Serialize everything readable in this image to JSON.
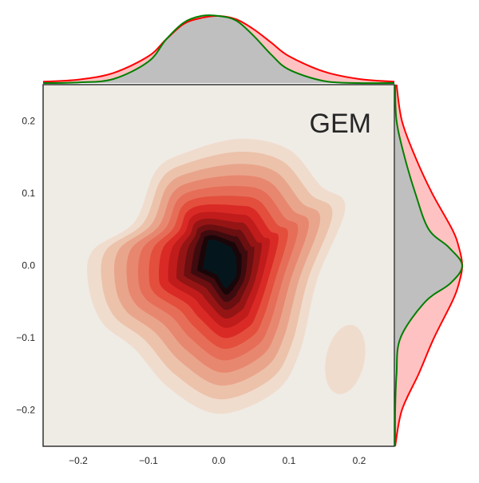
{
  "colors": {
    "background": "#ffffff",
    "joint_plot_face": "#efebe5",
    "marginal_fill_gray": "#bfbfbf",
    "marginal_fill_red": "#ffc2c2",
    "marginal_line_red": "#ff0000",
    "marginal_line_green": "#008000",
    "axis_spine": "#262626",
    "density_ramp": [
      "#f0dccd",
      "#ecc2ab",
      "#e9a58c",
      "#e8876f",
      "#e66e58",
      "#e34f3c",
      "#da2a26",
      "#c01c1b",
      "#951515",
      "#6b0f11",
      "#3f0b0e",
      "#1a0609",
      "#04161c"
    ]
  },
  "chart_data": {
    "type": "joint-kde",
    "corner_label": "GEM",
    "xlim": [
      -0.25,
      0.25
    ],
    "ylim": [
      -0.25,
      0.25
    ],
    "x_ticks": [
      {
        "value": -0.2,
        "label": "−0.2"
      },
      {
        "value": -0.1,
        "label": "−0.1"
      },
      {
        "value": 0.0,
        "label": "0.0"
      },
      {
        "value": 0.1,
        "label": "0.1"
      },
      {
        "value": 0.2,
        "label": "0.2"
      }
    ],
    "y_ticks": [
      {
        "value": 0.2,
        "label": "0.2"
      },
      {
        "value": 0.1,
        "label": "0.1"
      },
      {
        "value": 0.0,
        "label": "0.0"
      },
      {
        "value": -0.1,
        "label": "−0.1"
      },
      {
        "value": -0.2,
        "label": "−0.2"
      }
    ],
    "grid": false,
    "legend": "none",
    "joint_density": {
      "levels": 13,
      "peak": {
        "x": 0.0,
        "y": 0.005
      },
      "secondary_mode": {
        "x": 0.18,
        "y": -0.13
      }
    },
    "marginal_x": {
      "x": [
        -0.25,
        -0.2,
        -0.15,
        -0.1,
        -0.075,
        -0.05,
        -0.025,
        0.0,
        0.025,
        0.05,
        0.075,
        0.1,
        0.15,
        0.2,
        0.25
      ],
      "series": [
        {
          "color": "#ff0000",
          "fill": "#ffc2c2",
          "values": [
            0.02,
            0.05,
            0.15,
            0.4,
            0.65,
            0.88,
            0.97,
            1.0,
            0.95,
            0.8,
            0.6,
            0.4,
            0.17,
            0.06,
            0.02
          ]
        },
        {
          "color": "#008000",
          "fill": "#bfbfbf",
          "values": [
            0.0,
            0.01,
            0.06,
            0.32,
            0.65,
            0.9,
            1.0,
            1.0,
            0.93,
            0.7,
            0.42,
            0.2,
            0.03,
            0.0,
            0.0
          ]
        }
      ]
    },
    "marginal_y": {
      "y": [
        -0.25,
        -0.2,
        -0.15,
        -0.1,
        -0.05,
        -0.025,
        0.0,
        0.025,
        0.05,
        0.1,
        0.15,
        0.2,
        0.25
      ],
      "series": [
        {
          "color": "#ff0000",
          "fill": "#ffc2c2",
          "values": [
            0.0,
            0.1,
            0.35,
            0.58,
            0.85,
            0.95,
            1.0,
            0.95,
            0.85,
            0.55,
            0.3,
            0.1,
            0.02
          ]
        },
        {
          "color": "#008000",
          "fill": "#bfbfbf",
          "values": [
            0.0,
            0.0,
            0.02,
            0.08,
            0.45,
            0.82,
            1.0,
            0.8,
            0.5,
            0.3,
            0.14,
            0.02,
            0.0
          ]
        }
      ]
    }
  }
}
